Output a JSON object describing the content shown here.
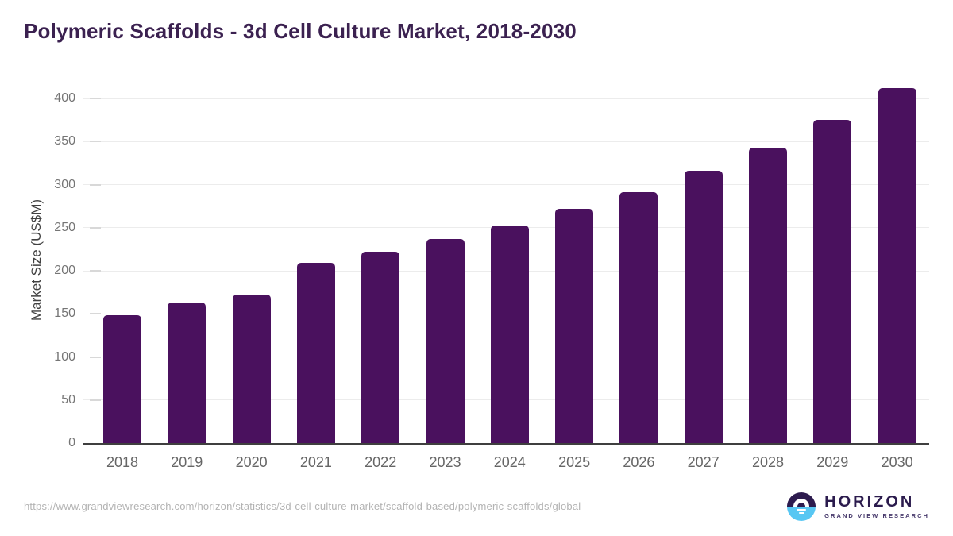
{
  "title": "Polymeric Scaffolds - 3d Cell Culture Market, 2018-2030",
  "source_url": "https://www.grandviewresearch.com/horizon/statistics/3d-cell-culture-market/scaffold-based/polymeric-scaffolds/global",
  "logo": {
    "name": "HORIZON",
    "subtitle": "GRAND VIEW RESEARCH"
  },
  "colors": {
    "bar": "#4a115e",
    "title": "#3b2150",
    "logo_dark_purple": "#2d1b4e",
    "logo_sky_blue": "#58c7f3",
    "gridline": "#ececec",
    "axis_line": "#3f3f3f",
    "tick_label": "#757575",
    "x_label": "#666666",
    "source_text": "#b3b3b3"
  },
  "chart_data": {
    "type": "bar",
    "title": "Polymeric Scaffolds - 3d Cell Culture Market, 2018-2030",
    "categories": [
      "2018",
      "2019",
      "2020",
      "2021",
      "2022",
      "2023",
      "2024",
      "2025",
      "2026",
      "2027",
      "2028",
      "2029",
      "2030"
    ],
    "values": [
      148,
      163,
      172,
      209,
      222,
      237,
      253,
      272,
      291,
      316,
      343,
      375,
      412
    ],
    "xlabel": "",
    "ylabel": "Market Size (US$M)",
    "ylim": [
      0,
      400
    ],
    "yticks": [
      0,
      50,
      100,
      150,
      200,
      250,
      300,
      350,
      400
    ],
    "grid": true,
    "legend": false,
    "bar_color": "#4a115e"
  }
}
